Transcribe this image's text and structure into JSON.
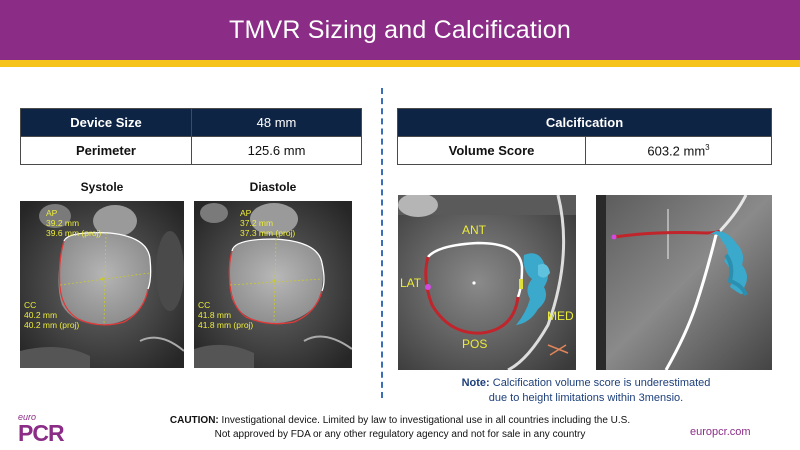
{
  "header": {
    "title": "TMVR Sizing and Calcification"
  },
  "sizing_table": {
    "rows": [
      {
        "label": "Device Size",
        "value": "48 mm"
      },
      {
        "label": "Perimeter",
        "value": "125.6 mm"
      }
    ]
  },
  "calc_table": {
    "header": "Calcification",
    "label": "Volume Score",
    "value": "603.2 mm",
    "unit_sup": "3"
  },
  "systole": {
    "label": "Systole",
    "ap_title": "AP",
    "ap_mm": "39.2 mm",
    "ap_proj": "39.6 mm (proj)",
    "cc_title": "CC",
    "cc_mm": "40.2 mm",
    "cc_proj": "40.2 mm (proj)"
  },
  "diastole": {
    "label": "Diastole",
    "ap_title": "AP",
    "ap_mm": "37.2 mm",
    "ap_proj": "37.3 mm (proj)",
    "cc_title": "CC",
    "cc_mm": "41.8 mm",
    "cc_proj": "41.8 mm (proj)"
  },
  "calc_image": {
    "ant": "ANT",
    "lat": "LAT",
    "med": "MED",
    "pos": "POS"
  },
  "note": {
    "prefix": "Note:",
    "line1": "Calcification volume score is underestimated",
    "line2": "due to height limitations within 3mensio."
  },
  "caution": {
    "prefix": "CAUTION:",
    "line1": "Investigational device. Limited by law to investigational use in all countries including the U.S.",
    "line2": "Not approved by FDA or any other regulatory agency and not for sale in any country"
  },
  "footer": {
    "logo_small": "euro",
    "logo_big": "PCR",
    "website": "europcr.com"
  },
  "colors": {
    "header_bg": "#8b2d86",
    "stripe": "#f5c319",
    "table_header": "#0e2445",
    "divider": "#3a6fb7",
    "note_text": "#1d3f7a"
  }
}
